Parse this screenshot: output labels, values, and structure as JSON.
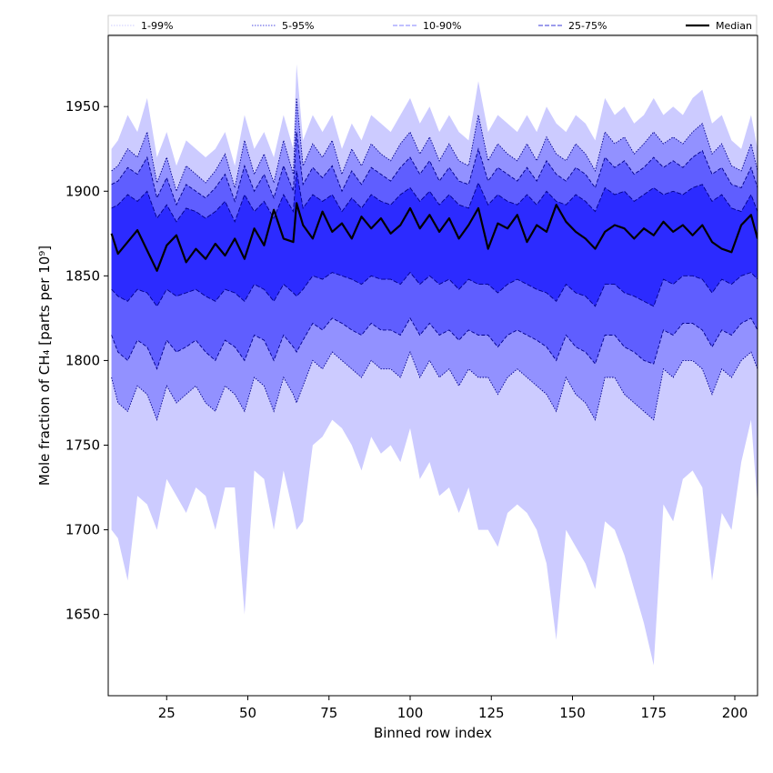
{
  "chart_data": {
    "type": "area",
    "xlabel": "Binned row index",
    "ylabel": "Mole fraction of CH₄ [parts per 10⁹]",
    "xlim": [
      7,
      207
    ],
    "ylim": [
      1602,
      1992
    ],
    "xticks": [
      25,
      50,
      75,
      100,
      125,
      150,
      175,
      200
    ],
    "yticks": [
      1650,
      1700,
      1750,
      1800,
      1850,
      1900,
      1950
    ],
    "grid": false,
    "legend_position": "top",
    "colors": {
      "band_1_99": "#cccbff",
      "band_5_95": "#9291ff",
      "band_10_90": "#5f5eff",
      "band_25_75": "#2c2bff",
      "median": "#000000",
      "edge_5_95": "#00008b",
      "edge_10_90": "#00008b",
      "edge_25_75": "#00008b"
    },
    "x": [
      8,
      10,
      13,
      16,
      19,
      22,
      25,
      28,
      31,
      34,
      37,
      40,
      43,
      46,
      49,
      52,
      55,
      58,
      61,
      64,
      65,
      67,
      70,
      73,
      76,
      79,
      82,
      85,
      88,
      91,
      94,
      97,
      100,
      103,
      106,
      109,
      112,
      115,
      118,
      121,
      124,
      127,
      130,
      133,
      136,
      139,
      142,
      145,
      148,
      151,
      154,
      157,
      160,
      163,
      166,
      169,
      172,
      175,
      178,
      181,
      184,
      187,
      190,
      193,
      196,
      199,
      202,
      205,
      207
    ],
    "series": [
      {
        "name": "1-99%",
        "lower": [
          1700,
          1695,
          1670,
          1720,
          1715,
          1700,
          1730,
          1720,
          1710,
          1725,
          1720,
          1700,
          1725,
          1725,
          1650,
          1735,
          1730,
          1700,
          1735,
          1710,
          1700,
          1705,
          1750,
          1755,
          1765,
          1760,
          1750,
          1735,
          1755,
          1745,
          1750,
          1740,
          1760,
          1730,
          1740,
          1720,
          1725,
          1710,
          1725,
          1700,
          1700,
          1690,
          1710,
          1715,
          1710,
          1700,
          1680,
          1635,
          1700,
          1690,
          1680,
          1665,
          1705,
          1700,
          1685,
          1665,
          1645,
          1620,
          1715,
          1705,
          1730,
          1735,
          1725,
          1670,
          1710,
          1700,
          1740,
          1765,
          1715
        ],
        "upper": [
          1925,
          1930,
          1945,
          1935,
          1955,
          1920,
          1935,
          1915,
          1930,
          1925,
          1920,
          1925,
          1935,
          1915,
          1945,
          1925,
          1935,
          1920,
          1945,
          1925,
          1975,
          1930,
          1945,
          1935,
          1945,
          1925,
          1940,
          1930,
          1945,
          1940,
          1935,
          1945,
          1955,
          1940,
          1950,
          1935,
          1945,
          1935,
          1930,
          1965,
          1935,
          1945,
          1940,
          1935,
          1945,
          1935,
          1950,
          1940,
          1935,
          1945,
          1940,
          1930,
          1955,
          1945,
          1950,
          1940,
          1945,
          1955,
          1945,
          1950,
          1945,
          1955,
          1960,
          1940,
          1945,
          1930,
          1925,
          1945,
          1925
        ]
      },
      {
        "name": "5-95%",
        "lower": [
          1790,
          1775,
          1770,
          1785,
          1780,
          1765,
          1785,
          1775,
          1780,
          1785,
          1775,
          1770,
          1785,
          1780,
          1770,
          1790,
          1785,
          1770,
          1790,
          1780,
          1775,
          1785,
          1800,
          1795,
          1805,
          1800,
          1795,
          1790,
          1800,
          1795,
          1795,
          1790,
          1805,
          1790,
          1800,
          1790,
          1795,
          1785,
          1795,
          1790,
          1790,
          1780,
          1790,
          1795,
          1790,
          1785,
          1780,
          1770,
          1790,
          1780,
          1775,
          1765,
          1790,
          1790,
          1780,
          1775,
          1770,
          1765,
          1795,
          1790,
          1800,
          1800,
          1795,
          1780,
          1795,
          1790,
          1800,
          1805,
          1795
        ],
        "upper": [
          1912,
          1915,
          1925,
          1920,
          1935,
          1905,
          1920,
          1900,
          1915,
          1910,
          1905,
          1912,
          1922,
          1902,
          1930,
          1910,
          1922,
          1905,
          1930,
          1910,
          1955,
          1915,
          1928,
          1920,
          1930,
          1910,
          1925,
          1915,
          1928,
          1922,
          1918,
          1928,
          1935,
          1922,
          1932,
          1918,
          1928,
          1918,
          1915,
          1945,
          1918,
          1928,
          1922,
          1918,
          1928,
          1918,
          1932,
          1922,
          1918,
          1928,
          1922,
          1912,
          1935,
          1928,
          1932,
          1922,
          1928,
          1935,
          1928,
          1932,
          1928,
          1935,
          1940,
          1922,
          1928,
          1915,
          1912,
          1928,
          1912
        ]
      },
      {
        "name": "10-90%",
        "lower": [
          1815,
          1805,
          1800,
          1812,
          1808,
          1795,
          1812,
          1805,
          1808,
          1812,
          1805,
          1800,
          1812,
          1808,
          1800,
          1815,
          1812,
          1800,
          1815,
          1808,
          1805,
          1812,
          1822,
          1818,
          1825,
          1822,
          1818,
          1815,
          1822,
          1818,
          1818,
          1815,
          1825,
          1815,
          1822,
          1815,
          1818,
          1812,
          1818,
          1815,
          1815,
          1808,
          1815,
          1818,
          1815,
          1812,
          1808,
          1800,
          1815,
          1808,
          1805,
          1798,
          1815,
          1815,
          1808,
          1805,
          1800,
          1798,
          1818,
          1815,
          1822,
          1822,
          1818,
          1808,
          1818,
          1815,
          1822,
          1825,
          1818
        ],
        "upper": [
          1904,
          1906,
          1914,
          1910,
          1920,
          1896,
          1908,
          1892,
          1904,
          1900,
          1896,
          1902,
          1910,
          1894,
          1915,
          1900,
          1910,
          1896,
          1915,
          1900,
          1935,
          1904,
          1914,
          1908,
          1915,
          1900,
          1912,
          1904,
          1914,
          1910,
          1906,
          1914,
          1920,
          1910,
          1918,
          1906,
          1914,
          1906,
          1904,
          1925,
          1906,
          1914,
          1910,
          1906,
          1914,
          1906,
          1918,
          1910,
          1906,
          1914,
          1910,
          1902,
          1920,
          1914,
          1918,
          1910,
          1914,
          1920,
          1914,
          1918,
          1914,
          1920,
          1924,
          1910,
          1914,
          1904,
          1902,
          1914,
          1902
        ]
      },
      {
        "name": "25-75%",
        "lower": [
          1842,
          1838,
          1835,
          1842,
          1840,
          1832,
          1842,
          1838,
          1840,
          1842,
          1838,
          1835,
          1842,
          1840,
          1835,
          1845,
          1842,
          1835,
          1845,
          1840,
          1838,
          1842,
          1850,
          1848,
          1852,
          1850,
          1848,
          1845,
          1850,
          1848,
          1848,
          1845,
          1852,
          1845,
          1850,
          1845,
          1848,
          1842,
          1848,
          1845,
          1845,
          1840,
          1845,
          1848,
          1845,
          1842,
          1840,
          1835,
          1845,
          1840,
          1838,
          1832,
          1845,
          1845,
          1840,
          1838,
          1835,
          1832,
          1848,
          1845,
          1850,
          1850,
          1848,
          1840,
          1848,
          1845,
          1850,
          1852,
          1848
        ],
        "upper": [
          1890,
          1892,
          1898,
          1894,
          1900,
          1884,
          1892,
          1882,
          1890,
          1888,
          1884,
          1888,
          1894,
          1882,
          1898,
          1888,
          1894,
          1884,
          1898,
          1888,
          1912,
          1890,
          1898,
          1894,
          1898,
          1888,
          1896,
          1890,
          1898,
          1894,
          1892,
          1898,
          1902,
          1894,
          1900,
          1892,
          1898,
          1892,
          1890,
          1905,
          1892,
          1898,
          1894,
          1892,
          1898,
          1892,
          1900,
          1894,
          1892,
          1898,
          1894,
          1888,
          1902,
          1898,
          1900,
          1894,
          1898,
          1902,
          1898,
          1900,
          1898,
          1902,
          1904,
          1894,
          1898,
          1890,
          1888,
          1898,
          1888
        ]
      },
      {
        "name": "Median",
        "values": [
          1875,
          1863,
          1870,
          1877,
          1865,
          1853,
          1868,
          1874,
          1858,
          1866,
          1860,
          1869,
          1862,
          1872,
          1860,
          1878,
          1868,
          1889,
          1872,
          1870,
          1893,
          1880,
          1872,
          1888,
          1876,
          1881,
          1872,
          1885,
          1878,
          1884,
          1875,
          1880,
          1890,
          1878,
          1886,
          1876,
          1884,
          1872,
          1880,
          1890,
          1866,
          1881,
          1878,
          1886,
          1870,
          1880,
          1876,
          1892,
          1882,
          1876,
          1872,
          1866,
          1876,
          1880,
          1878,
          1872,
          1878,
          1874,
          1882,
          1876,
          1880,
          1874,
          1880,
          1870,
          1866,
          1864,
          1880,
          1886,
          1872
        ]
      }
    ]
  },
  "legend": {
    "items": [
      {
        "label": "1-99%",
        "style": "dotted",
        "color": "#cccbff"
      },
      {
        "label": "5-95%",
        "style": "dotted",
        "color": "#4b4ae0"
      },
      {
        "label": "10-90%",
        "style": "dashed",
        "color": "#8281ff"
      },
      {
        "label": "25-75%",
        "style": "dashed",
        "color": "#3a39d8"
      },
      {
        "label": "Median",
        "style": "solid",
        "color": "#000000"
      }
    ]
  }
}
